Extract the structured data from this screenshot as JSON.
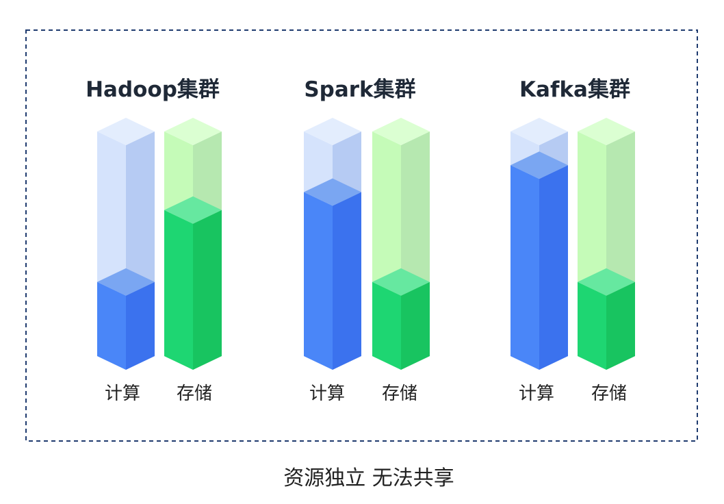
{
  "caption": "资源独立 无法共享",
  "clusters": [
    {
      "title": "Hadoop集群",
      "bars": [
        {
          "label": "计算",
          "kind": "compute",
          "fill_fraction": 0.33
        },
        {
          "label": "存储",
          "kind": "storage",
          "fill_fraction": 0.65
        }
      ]
    },
    {
      "title": "Spark集群",
      "bars": [
        {
          "label": "计算",
          "kind": "compute",
          "fill_fraction": 0.73
        },
        {
          "label": "存储",
          "kind": "storage",
          "fill_fraction": 0.33
        }
      ]
    },
    {
      "title": "Kafka集群",
      "bars": [
        {
          "label": "计算",
          "kind": "compute",
          "fill_fraction": 0.85
        },
        {
          "label": "存储",
          "kind": "storage",
          "fill_fraction": 0.33
        }
      ]
    }
  ],
  "colors": {
    "border": "#1e3a6e",
    "compute": {
      "solid_front": "#4a86f8",
      "solid_side": "#3b72ee",
      "solid_top": "#7aa6f2",
      "ghost_front": "#d5e3fc",
      "ghost_side": "#b6cbf3",
      "ghost_top": "#e3edfd"
    },
    "storage": {
      "solid_front": "#1ed672",
      "solid_side": "#18c460",
      "solid_top": "#66e8a0",
      "ghost_front": "#c5fbb8",
      "ghost_side": "#b6e8b0",
      "ghost_top": "#dbffd2"
    }
  }
}
